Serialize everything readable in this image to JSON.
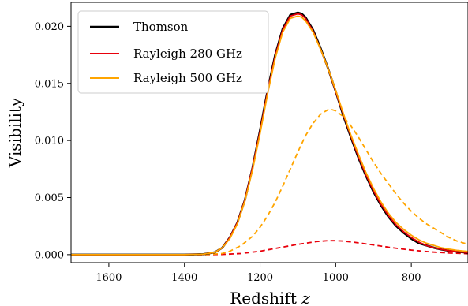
{
  "chart_data": {
    "type": "line",
    "xlabel": "Redshift",
    "xlabel_var": "z",
    "ylabel": "Visibility",
    "xlim": [
      1700,
      650
    ],
    "ylim": [
      -0.0007,
      0.0221
    ],
    "x_reversed": true,
    "x_ticks": [
      1600,
      1400,
      1200,
      1000,
      800
    ],
    "x_tick_labels": [
      "1600",
      "1400",
      "1200",
      "1000",
      "800"
    ],
    "y_ticks": [
      0.0,
      0.005,
      0.01,
      0.015,
      0.02
    ],
    "y_tick_labels": [
      "0.000",
      "0.005",
      "0.010",
      "0.015",
      "0.020"
    ],
    "grid": false,
    "legend_position": "top-left",
    "legend": [
      {
        "label": "Thomson",
        "color": "#000000"
      },
      {
        "label": "Rayleigh 280 GHz",
        "color": "#e8000b"
      },
      {
        "label": "Rayleigh 500 GHz",
        "color": "#ffa500"
      }
    ],
    "series": [
      {
        "name": "Thomson",
        "color": "#000000",
        "style": "solid",
        "x": [
          1700,
          1400,
          1350,
          1320,
          1300,
          1280,
          1260,
          1240,
          1220,
          1200,
          1180,
          1160,
          1140,
          1120,
          1100,
          1090,
          1080,
          1060,
          1040,
          1020,
          1000,
          980,
          960,
          940,
          920,
          900,
          880,
          860,
          840,
          820,
          800,
          780,
          760,
          740,
          720,
          700,
          680,
          660,
          650
        ],
        "y": [
          0.0,
          0.0,
          4e-05,
          0.0002,
          0.0006,
          0.0015,
          0.0028,
          0.0048,
          0.0076,
          0.0109,
          0.0144,
          0.0175,
          0.0198,
          0.021,
          0.0212,
          0.0211,
          0.0208,
          0.0197,
          0.0181,
          0.0163,
          0.0143,
          0.0122,
          0.0103,
          0.0085,
          0.0069,
          0.0055,
          0.0043,
          0.0033,
          0.0025,
          0.0019,
          0.0014,
          0.001,
          0.0008,
          0.0006,
          0.00045,
          0.00034,
          0.00026,
          0.0002,
          0.00017
        ]
      },
      {
        "name": "Rayleigh 280 GHz",
        "color": "#e8000b",
        "style": "solid",
        "x": [
          1700,
          1400,
          1350,
          1320,
          1300,
          1280,
          1260,
          1240,
          1220,
          1200,
          1180,
          1160,
          1140,
          1120,
          1100,
          1090,
          1080,
          1060,
          1040,
          1020,
          1000,
          980,
          960,
          940,
          920,
          900,
          880,
          860,
          840,
          820,
          800,
          780,
          760,
          740,
          720,
          700,
          680,
          660,
          650
        ],
        "y": [
          0.0,
          0.0,
          4e-05,
          0.0002,
          0.0006,
          0.0015,
          0.0028,
          0.0048,
          0.0076,
          0.0108,
          0.0143,
          0.0174,
          0.0197,
          0.0209,
          0.0211,
          0.021,
          0.0207,
          0.0196,
          0.018,
          0.0163,
          0.0143,
          0.0123,
          0.0104,
          0.0086,
          0.007,
          0.0056,
          0.0044,
          0.0034,
          0.0026,
          0.002,
          0.0015,
          0.0011,
          0.0008,
          0.0006,
          0.00046,
          0.00035,
          0.00027,
          0.00021,
          0.00018
        ]
      },
      {
        "name": "Rayleigh 500 GHz",
        "color": "#ffa500",
        "style": "solid",
        "x": [
          1700,
          1400,
          1350,
          1320,
          1300,
          1280,
          1260,
          1240,
          1220,
          1200,
          1180,
          1160,
          1140,
          1120,
          1100,
          1090,
          1080,
          1060,
          1040,
          1020,
          1000,
          980,
          960,
          940,
          920,
          900,
          880,
          860,
          840,
          820,
          800,
          780,
          760,
          740,
          720,
          700,
          680,
          660,
          650
        ],
        "y": [
          0.0,
          0.0,
          4e-05,
          0.0002,
          0.0006,
          0.0014,
          0.0027,
          0.0047,
          0.0074,
          0.0106,
          0.0141,
          0.0172,
          0.0195,
          0.0207,
          0.0209,
          0.0208,
          0.0205,
          0.0195,
          0.018,
          0.0163,
          0.0144,
          0.0124,
          0.0105,
          0.0088,
          0.0072,
          0.0058,
          0.0046,
          0.0036,
          0.0028,
          0.0022,
          0.0017,
          0.0013,
          0.001,
          0.0008,
          0.0006,
          0.00048,
          0.00038,
          0.00031,
          0.00028
        ]
      },
      {
        "name": "Rayleigh 280 GHz (dashed)",
        "color": "#e8000b",
        "style": "dashed",
        "x": [
          1700,
          1350,
          1300,
          1250,
          1200,
          1150,
          1100,
          1050,
          1020,
          1000,
          980,
          950,
          900,
          850,
          800,
          750,
          700,
          650
        ],
        "y": [
          0.0,
          0.0,
          2e-05,
          0.0001,
          0.0003,
          0.0006,
          0.0009,
          0.00115,
          0.00122,
          0.00122,
          0.00119,
          0.00108,
          0.00085,
          0.0006,
          0.0004,
          0.00024,
          0.00014,
          8e-05
        ]
      },
      {
        "name": "Rayleigh 500 GHz (dashed)",
        "color": "#ffa500",
        "style": "dashed",
        "x": [
          1700,
          1350,
          1300,
          1280,
          1250,
          1220,
          1200,
          1180,
          1160,
          1140,
          1120,
          1100,
          1080,
          1060,
          1040,
          1020,
          1010,
          1000,
          980,
          960,
          940,
          920,
          900,
          880,
          860,
          840,
          820,
          800,
          780,
          760,
          740,
          720,
          700,
          680,
          660,
          650
        ],
        "y": [
          0.0,
          0.0,
          0.0001,
          0.0003,
          0.0008,
          0.0016,
          0.0024,
          0.0034,
          0.0046,
          0.006,
          0.0075,
          0.009,
          0.0104,
          0.0115,
          0.0123,
          0.0127,
          0.0127,
          0.0126,
          0.0121,
          0.0113,
          0.0103,
          0.0092,
          0.0081,
          0.0071,
          0.0062,
          0.0053,
          0.0045,
          0.0038,
          0.0032,
          0.0027,
          0.0023,
          0.0019,
          0.0015,
          0.0012,
          0.001,
          0.0009
        ]
      }
    ]
  }
}
